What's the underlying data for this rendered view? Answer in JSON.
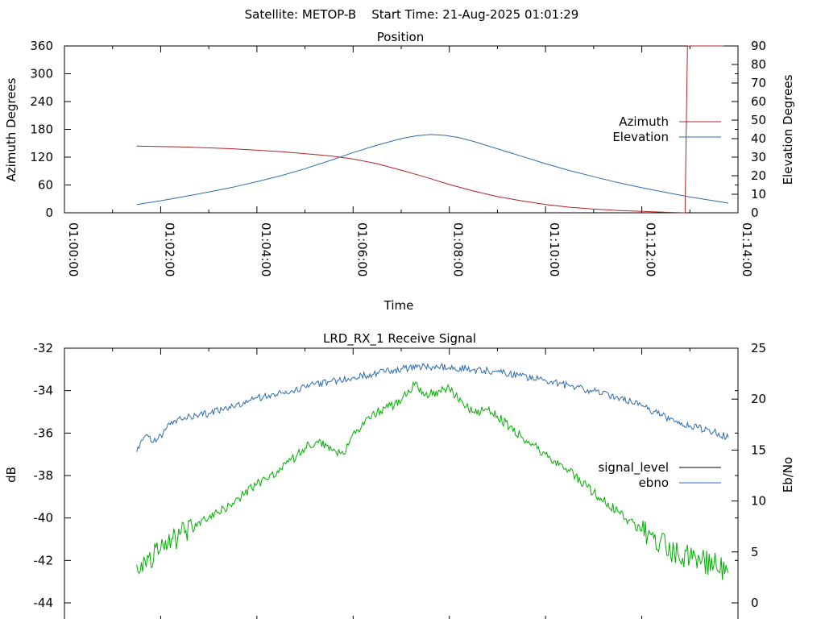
{
  "page_title": "Satellite: METOP-B    Start Time: 21-Aug-2025 01:01:29",
  "chart_data": [
    {
      "type": "line",
      "title": "Position",
      "xlabel": "Time",
      "ylabel": "Azimuth Degrees",
      "y2label": "Elevation Degrees",
      "x_unit": "minutes after 01:00:00",
      "xlim": [
        0,
        14
      ],
      "ylim": [
        0,
        360
      ],
      "y2lim": [
        0,
        90
      ],
      "x_ticks": [
        0,
        2,
        4,
        6,
        8,
        10,
        12,
        14
      ],
      "x_tick_labels": [
        "01:00:00",
        "01:02:00",
        "01:04:00",
        "01:06:00",
        "01:08:00",
        "01:10:00",
        "01:12:00",
        "01:14:00"
      ],
      "y_ticks": [
        0,
        60,
        120,
        180,
        240,
        300,
        360
      ],
      "y2_ticks": [
        0,
        10,
        20,
        30,
        40,
        50,
        60,
        70,
        80,
        90
      ],
      "grid": false,
      "legend": "right",
      "series": [
        {
          "name": "Azimuth",
          "axis": "left",
          "color": "#b22222",
          "x": [
            1.5,
            2.5,
            3.5,
            4.5,
            5.5,
            6.0,
            6.5,
            7.0,
            7.5,
            8.0,
            8.5,
            9.0,
            9.5,
            10.0,
            10.5,
            11.0,
            11.5,
            12.0,
            12.5,
            12.9,
            12.95,
            13.0,
            13.7
          ],
          "values": [
            144,
            142,
            138,
            132,
            123,
            116,
            106,
            92,
            77,
            61,
            47,
            35,
            26,
            18,
            12,
            8,
            5,
            3,
            1,
            0,
            360,
            360,
            360
          ]
        },
        {
          "name": "Elevation",
          "axis": "right",
          "color": "#2e6ab0",
          "x": [
            1.5,
            2.0,
            2.5,
            3.0,
            3.5,
            4.0,
            4.5,
            5.0,
            5.5,
            6.0,
            6.5,
            7.0,
            7.3,
            7.6,
            7.9,
            8.2,
            8.5,
            9.0,
            9.5,
            10.0,
            10.5,
            11.0,
            11.5,
            12.0,
            12.5,
            13.0,
            13.5,
            13.8
          ],
          "values": [
            4.5,
            6.5,
            8.8,
            11.2,
            13.8,
            16.8,
            20.0,
            23.8,
            28.0,
            32.5,
            36.5,
            40.0,
            41.5,
            42.2,
            41.8,
            40.5,
            38.5,
            34.5,
            30.5,
            26.5,
            22.8,
            19.5,
            16.3,
            13.5,
            11.0,
            8.5,
            6.5,
            5.2
          ]
        }
      ]
    },
    {
      "type": "line",
      "title": "LRD_RX_1 Receive Signal",
      "ylabel": "dB",
      "y2label": "Eb/No",
      "ylim": [
        -44,
        -32
      ],
      "y2lim": [
        0,
        25
      ],
      "xlim": [
        0,
        14
      ],
      "y_ticks": [
        -44,
        -42,
        -40,
        -38,
        -36,
        -34,
        -32
      ],
      "y2_ticks": [
        0,
        5,
        10,
        15,
        20,
        25
      ],
      "grid": false,
      "legend": "right",
      "legend_entries": [
        {
          "name": "signal_level",
          "color": "#000000"
        },
        {
          "name": "ebno",
          "color": "#2e6ab0"
        }
      ],
      "series": [
        {
          "name": "signal_level",
          "axis": "left",
          "color": "#00b000",
          "x": [
            1.5,
            2.0,
            2.5,
            3.0,
            3.5,
            4.0,
            4.5,
            5.0,
            5.3,
            5.5,
            5.8,
            6.0,
            6.5,
            7.0,
            7.3,
            7.5,
            7.8,
            8.0,
            8.3,
            8.5,
            8.8,
            9.0,
            9.5,
            10.0,
            10.5,
            11.0,
            11.5,
            12.0,
            12.5,
            13.0,
            13.5,
            13.8
          ],
          "values": [
            -42.2,
            -41.5,
            -40.7,
            -40.0,
            -39.3,
            -38.4,
            -37.7,
            -36.7,
            -36.3,
            -36.8,
            -37.0,
            -36.0,
            -35.0,
            -34.5,
            -33.6,
            -34.2,
            -34.0,
            -33.9,
            -34.7,
            -35.0,
            -34.9,
            -35.2,
            -36.2,
            -37.0,
            -37.8,
            -38.8,
            -39.7,
            -40.6,
            -41.4,
            -41.9,
            -42.2,
            -42.6
          ]
        },
        {
          "name": "ebno",
          "axis": "right",
          "color": "#2e6ab0",
          "x": [
            1.5,
            1.7,
            1.9,
            2.2,
            2.5,
            3.0,
            3.5,
            4.0,
            4.5,
            5.0,
            5.5,
            6.0,
            6.5,
            7.0,
            7.5,
            8.0,
            8.5,
            9.0,
            9.5,
            10.0,
            10.5,
            11.0,
            11.5,
            12.0,
            12.5,
            13.0,
            13.5,
            13.8
          ],
          "values": [
            14.8,
            16.5,
            15.8,
            17.5,
            18.2,
            18.6,
            19.3,
            20.1,
            20.6,
            21.2,
            21.7,
            22.1,
            22.6,
            23.0,
            23.2,
            23.1,
            22.9,
            22.7,
            22.3,
            21.8,
            21.3,
            20.8,
            20.2,
            19.3,
            18.2,
            17.4,
            16.8,
            16.2
          ]
        }
      ]
    }
  ]
}
